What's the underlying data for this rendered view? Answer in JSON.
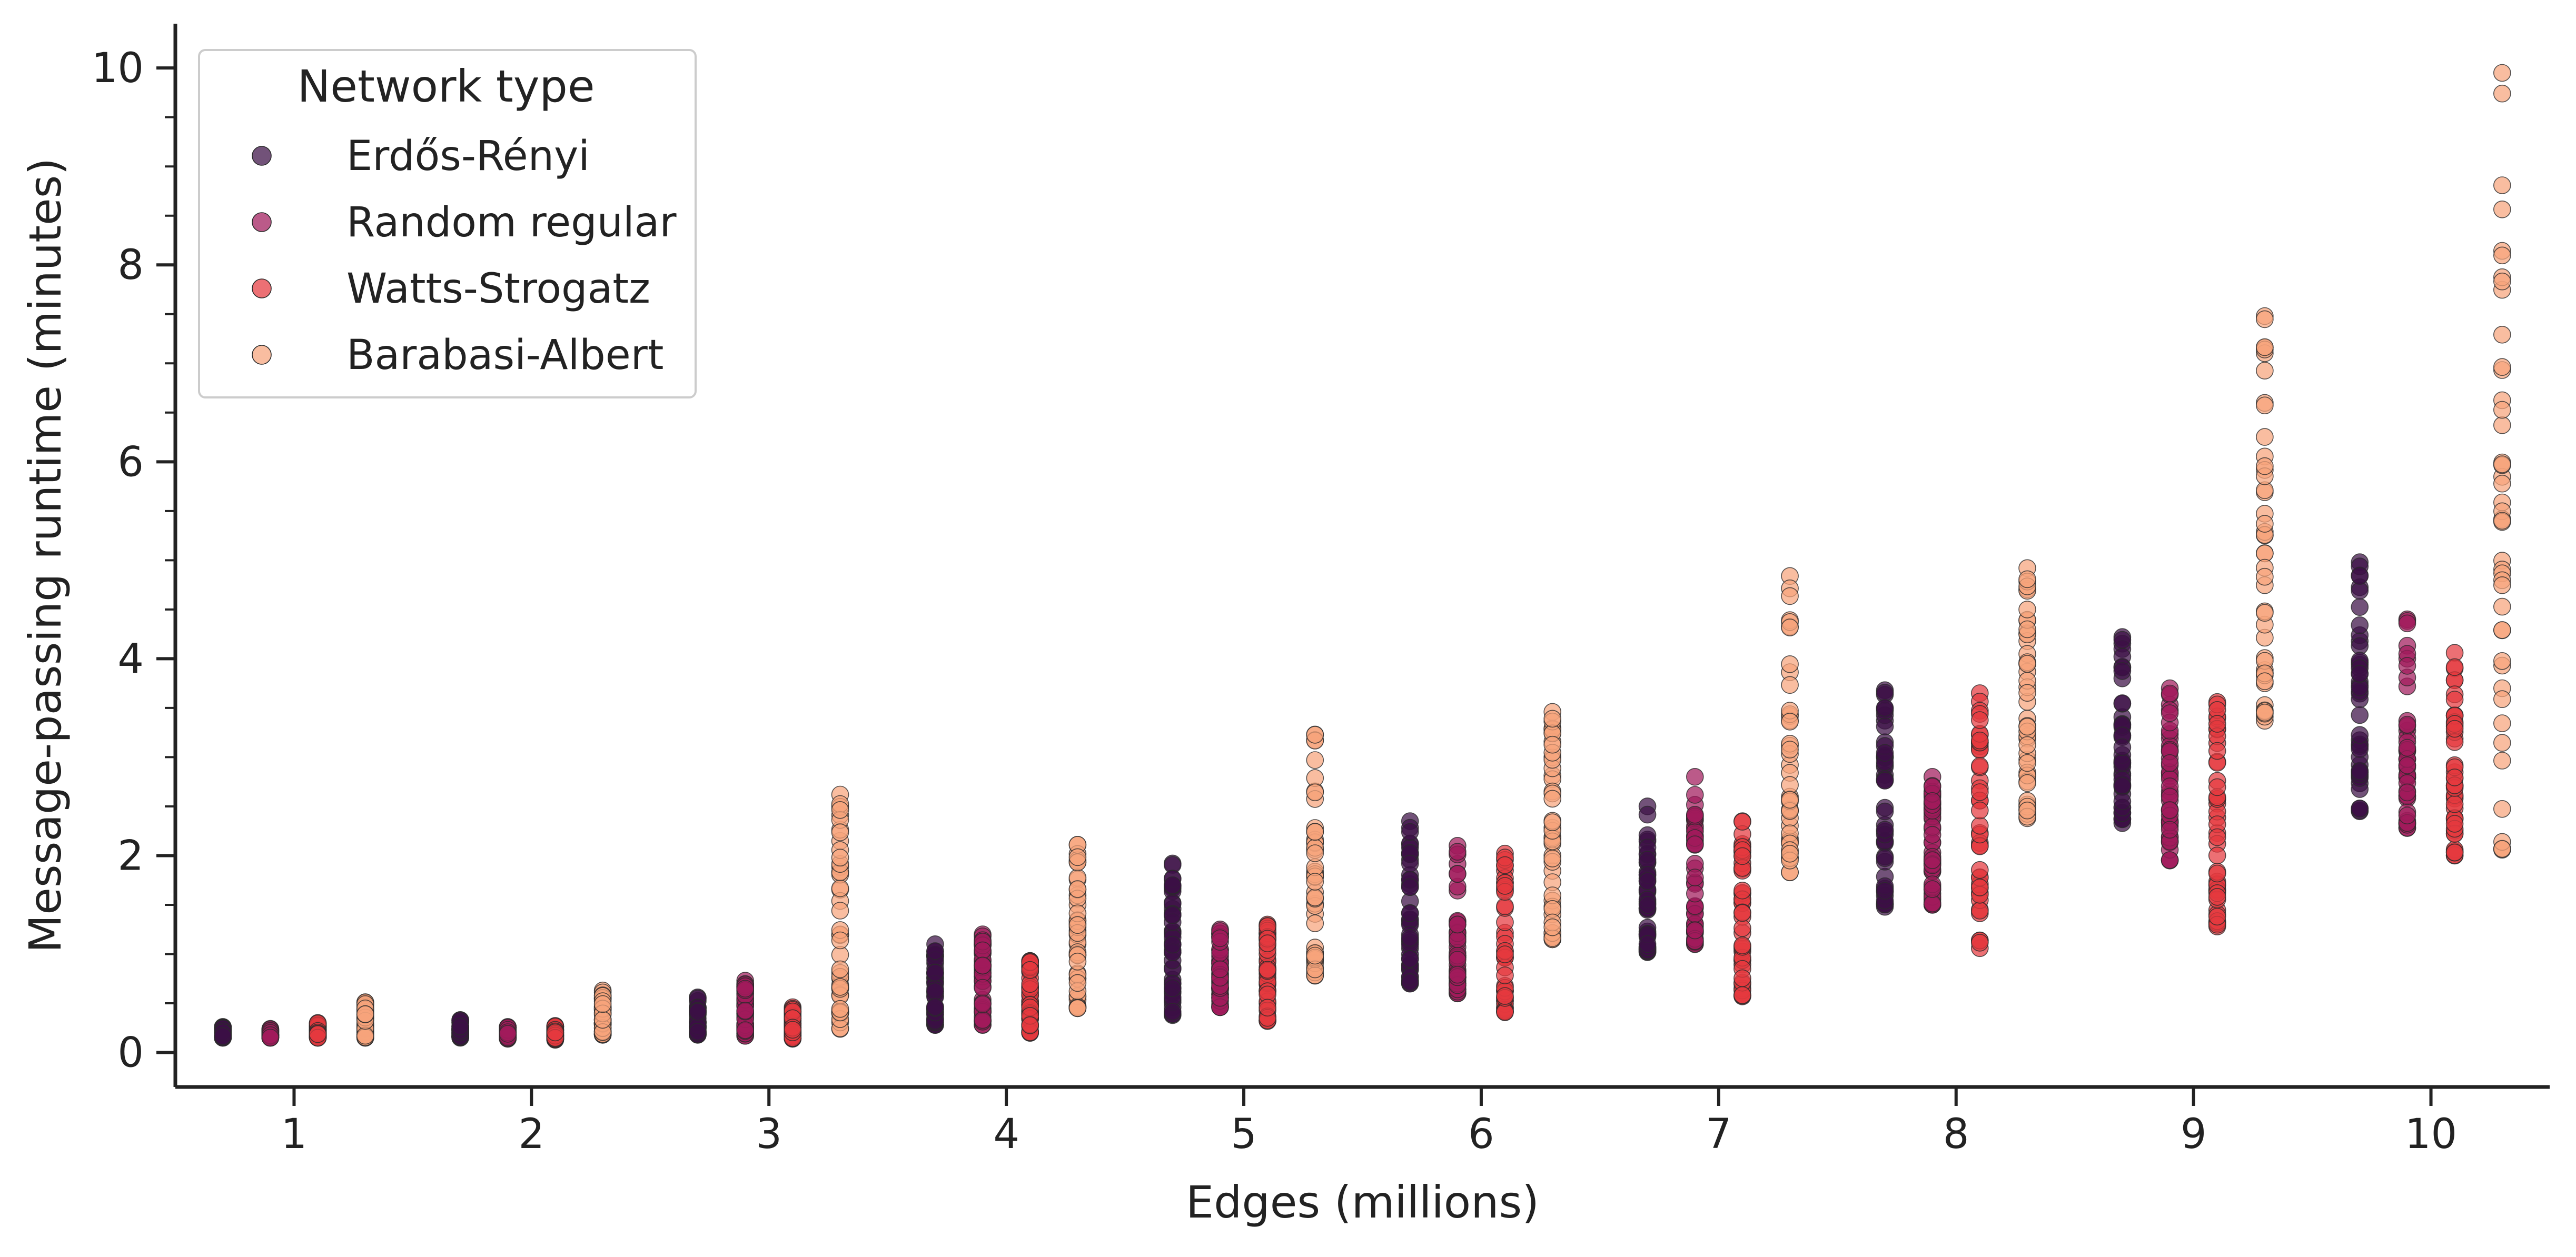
{
  "chart_data": {
    "type": "scatter",
    "xlabel": "Edges (millions)",
    "ylabel": "Message-passing runtime (minutes)",
    "xlim": [
      0.5,
      10.5
    ],
    "ylim": [
      -0.35,
      10.45
    ],
    "xticks": [
      1,
      2,
      3,
      4,
      5,
      6,
      7,
      8,
      9,
      10
    ],
    "xtick_labels": [
      "1",
      "2",
      "3",
      "4",
      "5",
      "6",
      "7",
      "8",
      "9",
      "10"
    ],
    "yticks": [
      0,
      2,
      4,
      6,
      8,
      10
    ],
    "ytick_labels": [
      "0",
      "2",
      "4",
      "6",
      "8",
      "10"
    ],
    "y_minor_step": 0.5,
    "grid": false,
    "legend": {
      "title": "Network type",
      "position": "top-left"
    },
    "series": [
      {
        "name": "Erdős-Rényi",
        "color": "#3c0f45",
        "x_offset": -0.3,
        "ranges": [
          [
            0.15,
            0.26
          ],
          [
            0.15,
            0.33
          ],
          [
            0.18,
            0.56
          ],
          [
            0.28,
            1.1
          ],
          [
            0.38,
            1.92
          ],
          [
            0.7,
            2.35
          ],
          [
            1.02,
            2.5
          ],
          [
            1.48,
            3.68
          ],
          [
            2.33,
            4.22
          ],
          [
            2.45,
            4.98
          ]
        ]
      },
      {
        "name": "Random regular",
        "color": "#a11a5b",
        "x_offset": -0.1,
        "ranges": [
          [
            0.15,
            0.24
          ],
          [
            0.14,
            0.26
          ],
          [
            0.17,
            0.73
          ],
          [
            0.28,
            1.2
          ],
          [
            0.46,
            1.25
          ],
          [
            0.6,
            2.1
          ],
          [
            1.1,
            2.8
          ],
          [
            1.5,
            2.8
          ],
          [
            1.95,
            3.7
          ],
          [
            2.28,
            4.4
          ]
        ]
      },
      {
        "name": "Watts-Strogatz",
        "color": "#e4393e",
        "x_offset": 0.1,
        "ranges": [
          [
            0.15,
            0.3
          ],
          [
            0.13,
            0.27
          ],
          [
            0.14,
            0.46
          ],
          [
            0.2,
            0.93
          ],
          [
            0.32,
            1.3
          ],
          [
            0.41,
            2.02
          ],
          [
            0.57,
            2.35
          ],
          [
            1.06,
            3.65
          ],
          [
            1.28,
            3.56
          ],
          [
            2.0,
            4.06
          ]
        ]
      },
      {
        "name": "Barabasi-Albert",
        "color": "#f6a47b",
        "x_offset": 0.3,
        "ranges": [
          [
            0.15,
            0.51
          ],
          [
            0.18,
            0.63
          ],
          [
            0.24,
            2.62
          ],
          [
            0.45,
            2.11
          ],
          [
            0.78,
            3.23
          ],
          [
            1.15,
            3.46
          ],
          [
            1.83,
            4.84
          ],
          [
            2.38,
            4.92
          ],
          [
            3.37,
            7.48
          ],
          [
            2.06,
            9.95
          ]
        ]
      }
    ]
  }
}
